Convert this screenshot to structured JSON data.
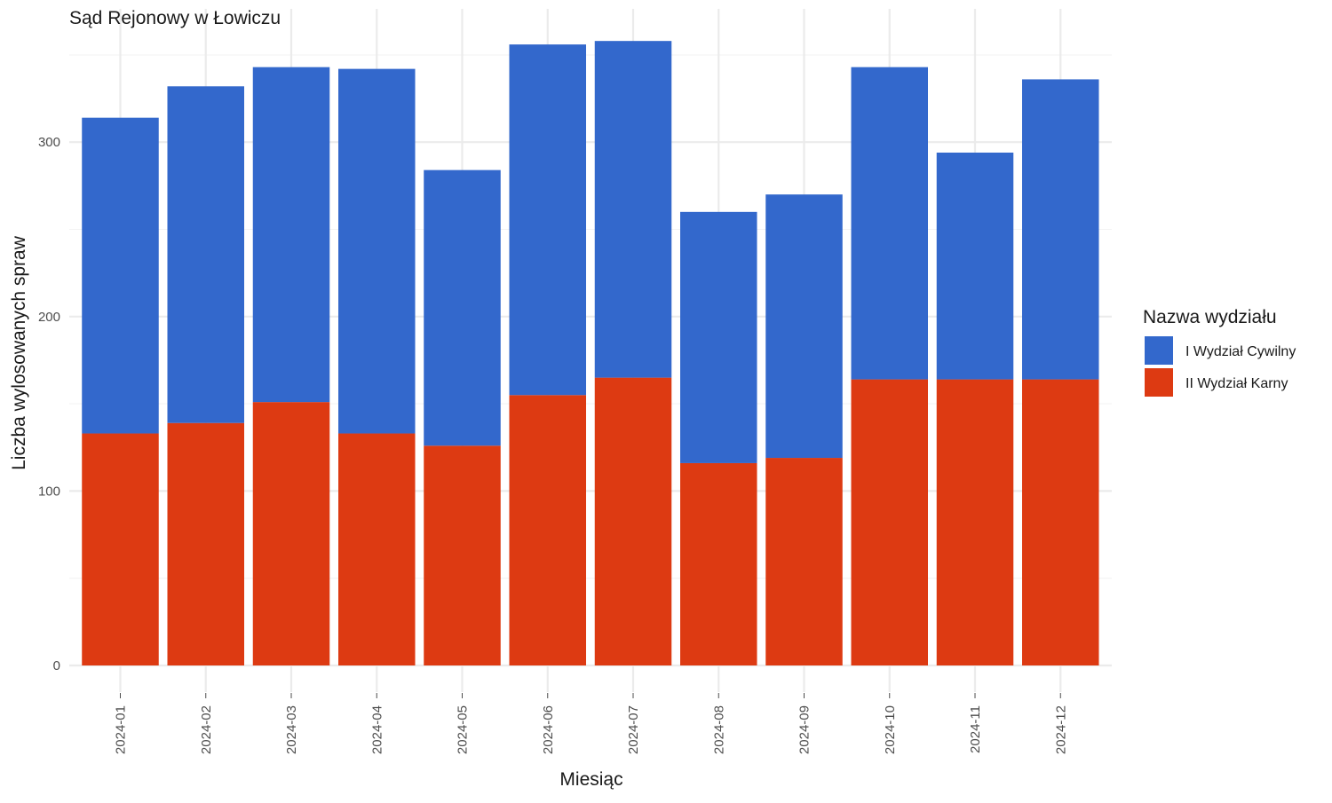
{
  "chart_data": {
    "type": "bar",
    "stacked": true,
    "title": "Sąd Rejonowy w Łowiczu",
    "xlabel": "Miesiąc",
    "ylabel": "Liczba wylosowanych spraw",
    "categories": [
      "2024-01",
      "2024-02",
      "2024-03",
      "2024-04",
      "2024-05",
      "2024-06",
      "2024-07",
      "2024-08",
      "2024-09",
      "2024-10",
      "2024-11",
      "2024-12"
    ],
    "series": [
      {
        "name": "II Wydział Karny",
        "color": "#DD3A12",
        "values": [
          133,
          139,
          151,
          133,
          126,
          155,
          165,
          116,
          119,
          164,
          164,
          164
        ]
      },
      {
        "name": "I Wydział Cywilny",
        "color": "#3368CC",
        "values": [
          181,
          193,
          192,
          209,
          158,
          201,
          193,
          144,
          151,
          179,
          130,
          172
        ]
      }
    ],
    "ylim": [
      0,
      375
    ],
    "yticks": [
      0,
      100,
      200,
      300
    ],
    "grid": true,
    "legend": {
      "title": "Nazwa wydziału",
      "position": "right",
      "order": [
        "I Wydział Cywilny",
        "II Wydział Karny"
      ]
    }
  }
}
